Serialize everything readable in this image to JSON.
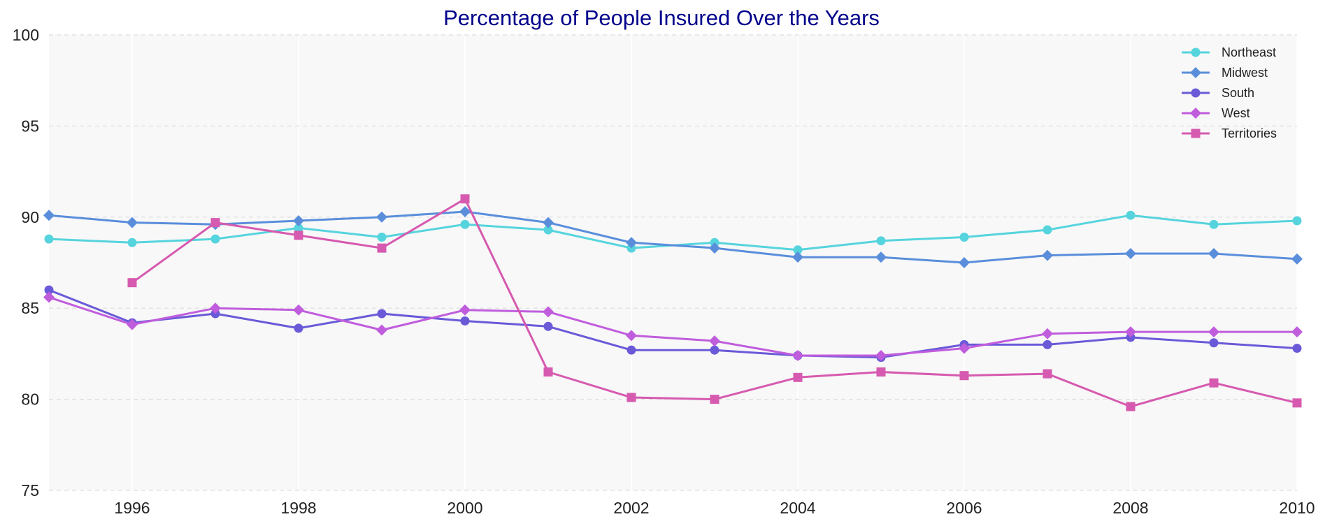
{
  "chart_data": {
    "type": "line",
    "title": "Percentage of People Insured Over the Years",
    "xlabel": "",
    "ylabel": "",
    "x": [
      1995,
      1996,
      1997,
      1998,
      1999,
      2000,
      2001,
      2002,
      2003,
      2004,
      2005,
      2006,
      2007,
      2008,
      2009,
      2010
    ],
    "xlim": [
      1995,
      2010
    ],
    "ylim": [
      75,
      100
    ],
    "x_ticks": [
      1996,
      1998,
      2000,
      2002,
      2004,
      2006,
      2008,
      2010
    ],
    "y_ticks": [
      75,
      80,
      85,
      90,
      95,
      100
    ],
    "grid": true,
    "legend_position": "top-right",
    "series": [
      {
        "name": "Northeast",
        "color": "#56d4dd",
        "marker": "circle",
        "values": [
          88.8,
          88.6,
          88.8,
          89.4,
          88.9,
          89.6,
          89.3,
          88.3,
          88.6,
          88.2,
          88.7,
          88.9,
          89.3,
          90.1,
          89.6,
          89.8
        ]
      },
      {
        "name": "Midwest",
        "color": "#5a8edb",
        "marker": "diamond",
        "values": [
          90.1,
          89.7,
          89.6,
          89.8,
          90.0,
          90.3,
          89.7,
          88.6,
          88.3,
          87.8,
          87.8,
          87.5,
          87.9,
          88.0,
          88.0,
          87.7
        ]
      },
      {
        "name": "South",
        "color": "#6a5ad8",
        "marker": "circle",
        "values": [
          86.0,
          84.2,
          84.7,
          83.9,
          84.7,
          84.3,
          84.0,
          82.7,
          82.7,
          82.4,
          82.3,
          83.0,
          83.0,
          83.4,
          83.1,
          82.8
        ]
      },
      {
        "name": "West",
        "color": "#c05ddd",
        "marker": "diamond",
        "values": [
          85.6,
          84.1,
          85.0,
          84.9,
          83.8,
          84.9,
          84.8,
          83.5,
          83.2,
          82.4,
          82.4,
          82.8,
          83.6,
          83.7,
          83.7,
          83.7
        ]
      },
      {
        "name": "Territories",
        "color": "#d65aaf",
        "marker": "square",
        "values": [
          null,
          86.4,
          89.7,
          89.0,
          88.3,
          91.0,
          81.5,
          80.1,
          80.0,
          81.2,
          81.5,
          81.3,
          81.4,
          79.6,
          80.9,
          79.8
        ]
      }
    ]
  }
}
